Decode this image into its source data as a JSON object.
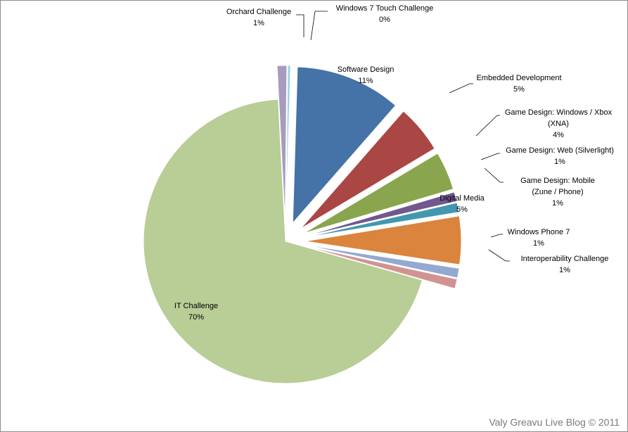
{
  "chart_data": {
    "type": "pie",
    "title": "",
    "slices": [
      {
        "label": [
          "Software Design",
          "11%"
        ],
        "value": 11,
        "color": "#4572a7",
        "label_inside": true
      },
      {
        "label": [
          "Embedded  Development",
          "5%"
        ],
        "value": 5,
        "color": "#aa4643",
        "label_inside": false
      },
      {
        "label": [
          "Game Design: Windows / Xbox",
          "(XNA)",
          "4%"
        ],
        "value": 4,
        "color": "#89a54e",
        "label_inside": false
      },
      {
        "label": [
          "Game Design: Web (Silverlight)",
          "1%"
        ],
        "value": 1,
        "color": "#71588f",
        "label_inside": false
      },
      {
        "label": [
          "Game Design: Mobile",
          "(Zune / Phone)",
          "1%"
        ],
        "value": 1,
        "color": "#4198af",
        "label_inside": false
      },
      {
        "label": [
          "Digital Media",
          "5%"
        ],
        "value": 5,
        "color": "#db843d",
        "label_inside": true
      },
      {
        "label": [
          "Windows Phone 7",
          "1%"
        ],
        "value": 1,
        "color": "#93a9cf",
        "label_inside": false
      },
      {
        "label": [
          "Interoperability Challenge",
          "1%"
        ],
        "value": 1,
        "color": "#d19392",
        "label_inside": false
      },
      {
        "label": [
          "IT Challenge",
          "70%"
        ],
        "value": 70,
        "color": "#b9cd96",
        "label_inside": true
      },
      {
        "label": [
          "Orchard Challenge",
          "1%"
        ],
        "value": 1,
        "color": "#a99bbd",
        "label_inside": false
      },
      {
        "label": [
          "Windows 7 Touch Challenge",
          "0%"
        ],
        "value": 0.3,
        "color": "#9ad3e3",
        "label_inside": false
      }
    ],
    "legend": "none"
  },
  "watermark": "Valy Greavu Live Blog © 2011"
}
